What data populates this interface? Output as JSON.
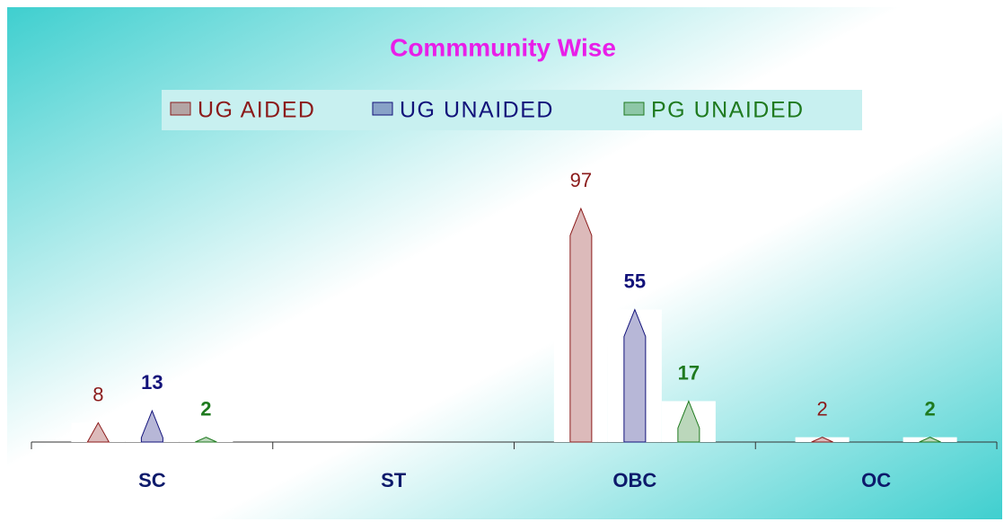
{
  "chart_data": {
    "type": "bar",
    "title": "Commmunity Wise",
    "categories": [
      "SC",
      "ST",
      "OBC",
      "OC"
    ],
    "series": [
      {
        "name": "UG AIDED",
        "color": "#8b1a1a",
        "values": [
          8,
          null,
          97,
          2
        ]
      },
      {
        "name": "UG UNAIDED",
        "color": "#12127a",
        "values": [
          13,
          null,
          55,
          null
        ]
      },
      {
        "name": "PG UNAIDED",
        "color": "#1f7a1f",
        "values": [
          2,
          null,
          17,
          2
        ]
      }
    ],
    "ylim": [
      0,
      100
    ],
    "legend": "top"
  }
}
